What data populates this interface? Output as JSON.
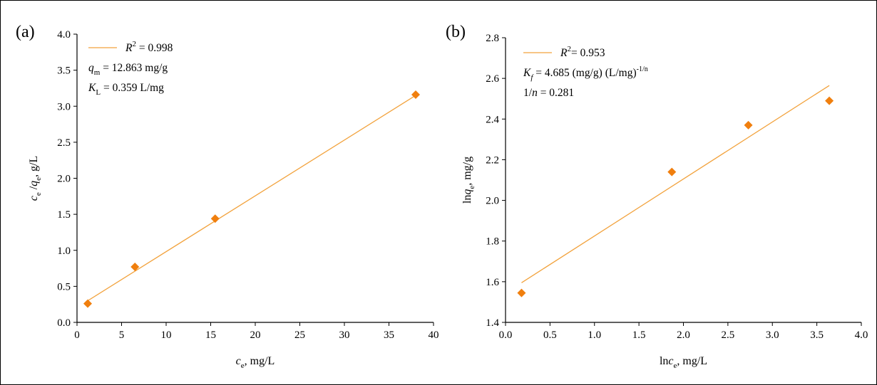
{
  "colors": {
    "marker": "#f07f0e",
    "fit_line": "#f2a23c",
    "frame": "#000000"
  },
  "chart_data": [
    {
      "type": "scatter",
      "panel_label": "(a)",
      "xlabel_parts": [
        "c",
        "e",
        ", mg/L"
      ],
      "ylabel_parts": [
        "c",
        "e",
        " /",
        "q",
        "e",
        ", g/L"
      ],
      "xlim": [
        0,
        40
      ],
      "ylim": [
        0,
        4.0
      ],
      "xticks": [
        0,
        5,
        10,
        15,
        20,
        25,
        30,
        35,
        40
      ],
      "xtick_labels": [
        "0",
        "5",
        "10",
        "15",
        "20",
        "25",
        "30",
        "35",
        "40"
      ],
      "yticks": [
        0,
        0.5,
        1.0,
        1.5,
        2.0,
        2.5,
        3.0,
        3.5,
        4.0
      ],
      "ytick_labels": [
        "0.0",
        "0.5",
        "1.0",
        "1.5",
        "2.0",
        "2.5",
        "3.0",
        "3.5",
        "4.0"
      ],
      "grid": false,
      "points": [
        {
          "x": 1.2,
          "y": 0.26
        },
        {
          "x": 6.5,
          "y": 0.77
        },
        {
          "x": 15.5,
          "y": 1.44
        },
        {
          "x": 38.0,
          "y": 3.16
        }
      ],
      "fit_line": {
        "x": [
          1.2,
          38.0
        ],
        "y": [
          0.3,
          3.15
        ]
      },
      "legend_position": "top-left",
      "legend": [
        {
          "parts": [
            "R",
            "2",
            " = 0.998"
          ]
        },
        {
          "parts": [
            "q",
            "m",
            " = 12.863 mg/g"
          ]
        },
        {
          "parts": [
            "K",
            "L",
            " = 0.359 L/mg"
          ]
        }
      ]
    },
    {
      "type": "scatter",
      "panel_label": "(b)",
      "xlabel_parts": [
        "ln",
        "c",
        "e",
        ", mg/L"
      ],
      "ylabel_parts": [
        "ln",
        "q",
        "e",
        ", mg/g"
      ],
      "xlim": [
        0,
        4.0
      ],
      "ylim": [
        1.4,
        2.8
      ],
      "xticks": [
        0,
        0.5,
        1.0,
        1.5,
        2.0,
        2.5,
        3.0,
        3.5,
        4.0
      ],
      "xtick_labels": [
        "0.0",
        "0.5",
        "1.0",
        "1.5",
        "2.0",
        "2.5",
        "3.0",
        "3.5",
        "4.0"
      ],
      "yticks": [
        1.4,
        1.6,
        1.8,
        2.0,
        2.2,
        2.4,
        2.6,
        2.8
      ],
      "ytick_labels": [
        "1.4",
        "1.6",
        "1.8",
        "2.0",
        "2.2",
        "2.4",
        "2.6",
        "2.8"
      ],
      "grid": false,
      "points": [
        {
          "x": 0.18,
          "y": 1.545
        },
        {
          "x": 1.87,
          "y": 2.14
        },
        {
          "x": 2.73,
          "y": 2.37
        },
        {
          "x": 3.64,
          "y": 2.49
        }
      ],
      "fit_line": {
        "x": [
          0.18,
          3.64
        ],
        "y": [
          1.595,
          2.565
        ]
      },
      "legend_position": "top-left",
      "legend": [
        {
          "parts": [
            "R",
            "2",
            "= 0.953"
          ]
        },
        {
          "parts": [
            "K",
            "f",
            " = 4.685 (mg/g) (L/mg)",
            "-1/n"
          ]
        },
        {
          "parts": [
            "1/",
            "n",
            " = 0.281"
          ]
        }
      ]
    }
  ]
}
